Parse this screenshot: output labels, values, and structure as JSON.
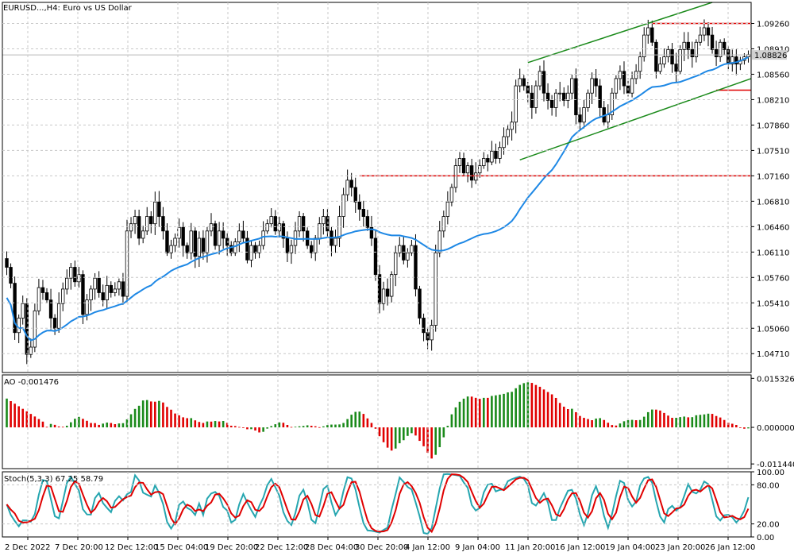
{
  "chart_data": [
    {
      "type": "candlestick",
      "panel": "main",
      "title": "EURUSD...,H4:  Euro vs US Dollar",
      "y_ticks": [
        "1.09260",
        "1.08910",
        "1.08560",
        "1.08210",
        "1.07860",
        "1.07510",
        "1.07160",
        "1.06810",
        "1.06460",
        "1.06110",
        "1.05760",
        "1.05410",
        "1.05060",
        "1.04710"
      ],
      "ylim": [
        1.0445,
        1.0955
      ],
      "current_price": "1.08826",
      "close": [
        1.059,
        1.0568,
        1.05,
        1.052,
        1.054,
        1.047,
        1.048,
        1.053,
        1.0562,
        1.0555,
        1.0545,
        1.052,
        1.0506,
        1.054,
        1.056,
        1.0575,
        1.059,
        1.057,
        1.058,
        1.0525,
        1.0545,
        1.056,
        1.0575,
        1.0555,
        1.0545,
        1.0565,
        1.0555,
        1.056,
        1.057,
        1.055,
        1.064,
        1.065,
        1.066,
        1.063,
        1.064,
        1.066,
        1.065,
        1.068,
        1.066,
        1.064,
        1.061,
        1.062,
        1.063,
        1.0645,
        1.062,
        1.061,
        1.064,
        1.0605,
        1.063,
        1.061,
        1.064,
        1.065,
        1.062,
        1.064,
        1.063,
        1.062,
        1.061,
        1.0625,
        1.064,
        1.063,
        1.06,
        1.062,
        1.061,
        1.062,
        1.064,
        1.065,
        1.066,
        1.064,
        1.065,
        1.063,
        1.061,
        1.062,
        1.064,
        1.066,
        1.064,
        1.062,
        1.061,
        1.063,
        1.065,
        1.066,
        1.064,
        1.062,
        1.063,
        1.066,
        1.069,
        1.071,
        1.07,
        1.068,
        1.067,
        1.066,
        1.0645,
        1.063,
        1.058,
        1.054,
        1.056,
        1.055,
        1.058,
        1.061,
        1.062,
        1.06,
        1.061,
        1.062,
        1.056,
        1.052,
        1.05,
        1.049,
        1.051,
        1.061,
        1.064,
        1.066,
        1.068,
        1.07,
        1.073,
        1.074,
        1.072,
        1.073,
        1.071,
        1.072,
        1.073,
        1.074,
        1.0735,
        1.075,
        1.074,
        1.0755,
        1.077,
        1.078,
        1.079,
        1.084,
        1.085,
        1.084,
        1.083,
        1.081,
        1.084,
        1.086,
        1.083,
        1.082,
        1.081,
        1.083,
        1.083,
        1.082,
        1.083,
        1.085,
        1.08,
        1.079,
        1.081,
        1.083,
        1.085,
        1.084,
        1.081,
        1.079,
        1.08,
        1.083,
        1.085,
        1.086,
        1.084,
        1.083,
        1.085,
        1.086,
        1.088,
        1.091,
        1.092,
        1.09,
        1.086,
        1.087,
        1.088,
        1.089,
        1.087,
        1.086,
        1.089,
        1.09,
        1.089,
        1.088,
        1.09,
        1.091,
        1.092,
        1.091,
        1.089,
        1.088,
        1.09,
        1.089,
        1.087,
        1.088,
        1.087,
        1.0875,
        1.088,
        1.0883
      ],
      "moving_average_color": "#1e88e5",
      "channel_color": "#1a8a1a",
      "level_color": "#e00000",
      "horizontal_levels": [
        1.0926,
        1.0716,
        1.0834
      ]
    },
    {
      "type": "bar",
      "panel": "oscillator",
      "title": "AO -0.001476",
      "y_ticks": [
        "0.015326",
        "0.000000",
        "-0.011440"
      ],
      "ylim": [
        -0.0129,
        0.0164
      ],
      "up_color": "#1a8a1a",
      "down_color": "#e00000"
    },
    {
      "type": "line",
      "panel": "stochastic",
      "title": "Stoch(5,3,3) 67.25 58.79",
      "y_ticks": [
        "100.00",
        "80.00",
        "20.00",
        "0.00"
      ],
      "ylim": [
        0,
        100
      ],
      "main_color": "#26a6b0",
      "signal_color": "#e00000"
    }
  ],
  "x_ticks": [
    "2 Dec 2022",
    "7 Dec 20:00",
    "12 Dec 12:00",
    "15 Dec 04:00",
    "19 Dec 20:00",
    "22 Dec 12:00",
    "28 Dec 04:00",
    "30 Dec 20:00",
    "4 Jan 12:00",
    "9 Jan 04:00",
    "11 Jan 20:00",
    "16 Jan 12:00",
    "19 Jan 04:00",
    "23 Jan 20:00",
    "26 Jan 12:00"
  ]
}
